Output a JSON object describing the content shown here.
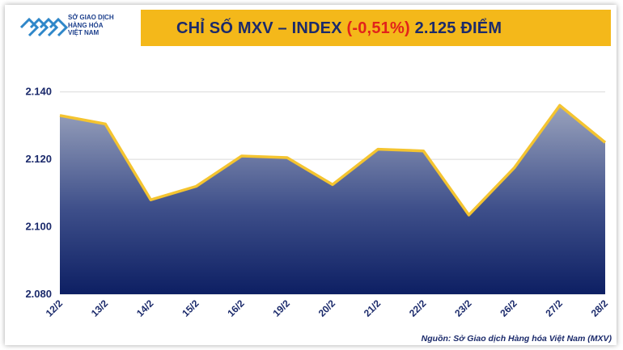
{
  "header": {
    "logo_lines": [
      "SỞ GIAO DỊCH",
      "HÀNG HÓA",
      "VIỆT NAM"
    ],
    "title_prefix": "CHỈ SỐ MXV – INDEX ",
    "title_change": "(-0,51%)",
    "title_suffix": " 2.125 ĐIỂM"
  },
  "footer": {
    "source": "Nguồn: Sở Giao dịch Hàng hóa Việt Nam (MXV)"
  },
  "colors": {
    "title_bar": "#f4b81a",
    "line": "#f4c430",
    "area_top": "#9aa3bd",
    "area_bottom": "#0d1f63",
    "text": "#1b2a6b",
    "negative": "#e2231a"
  },
  "chart_data": {
    "type": "area",
    "title": "CHỈ SỐ MXV – INDEX (-0,51%) 2.125 ĐIỂM",
    "categories": [
      "12/2",
      "13/2",
      "14/2",
      "15/2",
      "16/2",
      "19/2",
      "20/2",
      "21/2",
      "22/2",
      "23/2",
      "26/2",
      "27/2",
      "28/2"
    ],
    "series": [
      {
        "values": [
          2133,
          2130.5,
          2108,
          2112,
          2121,
          2120.5,
          2112.5,
          2123,
          2122.5,
          2103.5,
          2117.5,
          2136,
          2125
        ]
      }
    ],
    "yticks": [
      "2.080",
      "2.100",
      "2.120",
      "2.140"
    ],
    "ylim": [
      2080,
      2144
    ],
    "grid": true,
    "legend": "none"
  }
}
